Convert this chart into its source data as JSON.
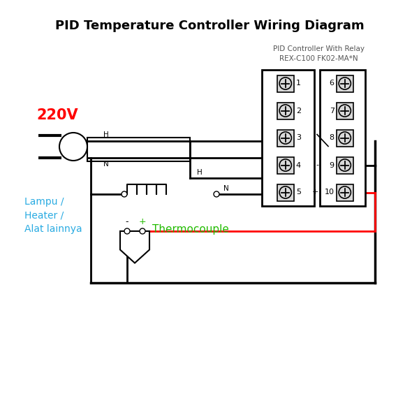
{
  "title": "PID Temperature Controller Wiring Diagram",
  "pid_label1": "PID Controller With Relay",
  "pid_label2": "REX-C100 FK02-MA*N",
  "label_220v": "220V",
  "label_lampu": "Lampu /\nHeater /\nAlat lainnya",
  "label_thermocouple": "Thermocouple",
  "color_220v": "#ff0000",
  "color_lampu": "#29abe2",
  "color_thermocouple": "#22bb00",
  "color_wire_black": "#000000",
  "color_wire_red": "#ff0000",
  "color_bg": "#ffffff",
  "terminal_labels_left": [
    "1",
    "2",
    "3",
    "4",
    "5"
  ],
  "terminal_labels_right": [
    "6",
    "7",
    "8",
    "9",
    "10"
  ],
  "minus_label": "-",
  "plus_label": "+"
}
